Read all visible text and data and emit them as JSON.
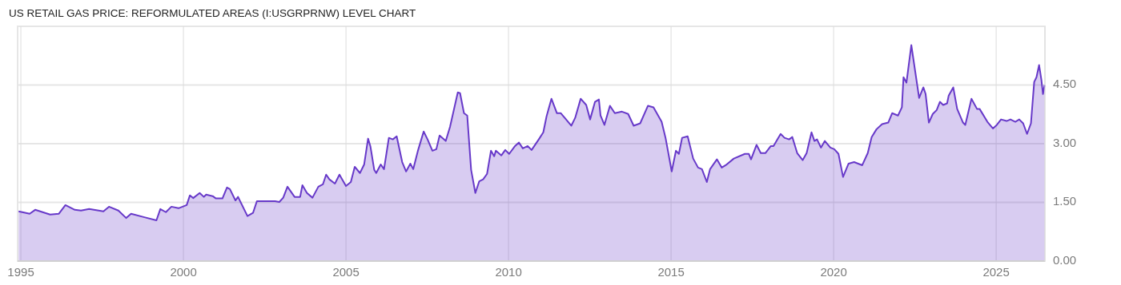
{
  "chart_data": {
    "type": "area",
    "title": "US RETAIL GAS PRICE: REFORMULATED AREAS (I:USGRPRNW) LEVEL CHART",
    "xlim": [
      1994.9,
      2026.5
    ],
    "xticks": [
      1995,
      2000,
      2005,
      2010,
      2015,
      2020,
      2025
    ],
    "ylim": [
      0,
      6
    ],
    "yticks": [
      {
        "value": 0,
        "label": "0.00"
      },
      {
        "value": 1.5,
        "label": "1.50"
      },
      {
        "value": 3,
        "label": "3.00"
      },
      {
        "value": 4.5,
        "label": "4.50"
      }
    ],
    "grid": true,
    "series": [
      {
        "color": "#6739c9",
        "x": [
          1994.93,
          1995.27,
          1995.44,
          1995.9,
          1996.17,
          1996.37,
          1996.66,
          1996.85,
          1997.1,
          1997.54,
          1997.71,
          1998.0,
          1998.24,
          1998.39,
          1998.8,
          1999.17,
          1999.29,
          1999.46,
          1999.63,
          1999.85,
          2000.1,
          2000.2,
          2000.3,
          2000.5,
          2000.63,
          2000.7,
          2000.9,
          2001.0,
          2001.2,
          2001.34,
          2001.43,
          2001.6,
          2001.68,
          2001.97,
          2002.14,
          2002.26,
          2002.82,
          2002.95,
          2003.07,
          2003.2,
          2003.42,
          2003.59,
          2003.66,
          2003.8,
          2003.97,
          2004.15,
          2004.29,
          2004.39,
          2004.49,
          2004.66,
          2004.8,
          2005.0,
          2005.15,
          2005.27,
          2005.43,
          2005.56,
          2005.68,
          2005.75,
          2005.87,
          2005.93,
          2006.07,
          2006.17,
          2006.32,
          2006.44,
          2006.56,
          2006.73,
          2006.85,
          2006.98,
          2007.07,
          2007.22,
          2007.39,
          2007.51,
          2007.66,
          2007.78,
          2007.88,
          2008.07,
          2008.2,
          2008.44,
          2008.51,
          2008.63,
          2008.73,
          2008.85,
          2008.98,
          2009.1,
          2009.22,
          2009.34,
          2009.46,
          2009.56,
          2009.61,
          2009.78,
          2009.9,
          2010.02,
          2010.2,
          2010.32,
          2010.44,
          2010.59,
          2010.71,
          2010.93,
          2011.07,
          2011.17,
          2011.32,
          2011.49,
          2011.61,
          2011.73,
          2011.93,
          2012.05,
          2012.22,
          2012.39,
          2012.51,
          2012.66,
          2012.78,
          2012.83,
          2012.95,
          2013.12,
          2013.27,
          2013.49,
          2013.68,
          2013.85,
          2014.05,
          2014.29,
          2014.46,
          2014.71,
          2014.83,
          2015.02,
          2015.15,
          2015.24,
          2015.34,
          2015.51,
          2015.68,
          2015.83,
          2015.95,
          2016.1,
          2016.2,
          2016.41,
          2016.56,
          2016.68,
          2016.93,
          2017.27,
          2017.39,
          2017.46,
          2017.63,
          2017.76,
          2017.9,
          2018.07,
          2018.15,
          2018.37,
          2018.49,
          2018.63,
          2018.73,
          2018.88,
          2019.05,
          2019.17,
          2019.32,
          2019.41,
          2019.49,
          2019.61,
          2019.73,
          2019.9,
          2020.02,
          2020.15,
          2020.29,
          2020.46,
          2020.63,
          2020.88,
          2021.05,
          2021.17,
          2021.32,
          2021.49,
          2021.68,
          2021.8,
          2021.98,
          2022.1,
          2022.15,
          2022.24,
          2022.39,
          2022.63,
          2022.76,
          2022.83,
          2022.93,
          2023.05,
          2023.17,
          2023.27,
          2023.37,
          2023.49,
          2023.54,
          2023.68,
          2023.8,
          2023.98,
          2024.05,
          2024.24,
          2024.41,
          2024.49,
          2024.73,
          2024.9,
          2025.02,
          2025.15,
          2025.32,
          2025.44,
          2025.59,
          2025.71,
          2025.83,
          2025.95,
          2026.07,
          2026.17,
          2026.24,
          2026.32,
          2026.39,
          2026.44,
          2026.49
        ],
        "values": [
          1.27,
          1.21,
          1.31,
          1.19,
          1.21,
          1.43,
          1.31,
          1.29,
          1.33,
          1.27,
          1.39,
          1.29,
          1.1,
          1.21,
          1.12,
          1.04,
          1.33,
          1.25,
          1.39,
          1.35,
          1.43,
          1.68,
          1.61,
          1.74,
          1.64,
          1.7,
          1.66,
          1.6,
          1.6,
          1.88,
          1.84,
          1.55,
          1.64,
          1.15,
          1.23,
          1.53,
          1.53,
          1.51,
          1.62,
          1.9,
          1.64,
          1.64,
          1.94,
          1.74,
          1.62,
          1.9,
          1.96,
          2.21,
          2.09,
          1.98,
          2.21,
          1.92,
          2.02,
          2.41,
          2.25,
          2.47,
          3.13,
          2.94,
          2.33,
          2.25,
          2.47,
          2.35,
          3.15,
          3.11,
          3.19,
          2.53,
          2.29,
          2.49,
          2.35,
          2.84,
          3.31,
          3.11,
          2.82,
          2.86,
          3.21,
          3.07,
          3.43,
          4.31,
          4.29,
          3.78,
          3.72,
          2.33,
          1.74,
          2.04,
          2.09,
          2.23,
          2.82,
          2.68,
          2.82,
          2.7,
          2.84,
          2.74,
          2.94,
          3.03,
          2.88,
          2.94,
          2.84,
          3.11,
          3.29,
          3.7,
          4.15,
          3.78,
          3.78,
          3.66,
          3.46,
          3.66,
          4.15,
          3.99,
          3.62,
          4.07,
          4.13,
          3.72,
          3.48,
          3.97,
          3.78,
          3.82,
          3.76,
          3.46,
          3.52,
          3.97,
          3.93,
          3.56,
          3.15,
          2.29,
          2.82,
          2.74,
          3.15,
          3.19,
          2.62,
          2.39,
          2.35,
          2.02,
          2.35,
          2.6,
          2.39,
          2.45,
          2.62,
          2.74,
          2.74,
          2.6,
          2.97,
          2.76,
          2.76,
          2.94,
          2.94,
          3.25,
          3.15,
          3.11,
          3.17,
          2.76,
          2.58,
          2.76,
          3.29,
          3.07,
          3.11,
          2.9,
          3.07,
          2.9,
          2.86,
          2.74,
          2.15,
          2.49,
          2.53,
          2.45,
          2.76,
          3.17,
          3.37,
          3.5,
          3.54,
          3.78,
          3.72,
          3.93,
          4.7,
          4.56,
          5.52,
          4.17,
          4.44,
          4.27,
          3.54,
          3.76,
          3.86,
          4.07,
          3.99,
          4.03,
          4.23,
          4.44,
          3.89,
          3.54,
          3.48,
          4.15,
          3.89,
          3.89,
          3.56,
          3.39,
          3.48,
          3.62,
          3.58,
          3.62,
          3.56,
          3.62,
          3.52,
          3.25,
          3.52,
          4.58,
          4.7,
          5.01,
          4.64,
          4.27,
          4.5
        ]
      }
    ]
  }
}
